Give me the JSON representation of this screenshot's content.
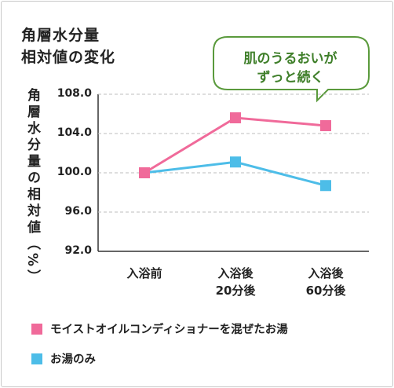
{
  "title_lines": [
    "角層水分量",
    "相対値の変化"
  ],
  "callout": {
    "lines": [
      "肌のうるおいが",
      "ずっと続く"
    ],
    "color": "#5a9a3c"
  },
  "chart_data": {
    "type": "line",
    "ylabel": "角層水分量の相対値（%）",
    "categories": [
      [
        "入浴前"
      ],
      [
        "入浴後",
        "20分後"
      ],
      [
        "入浴後",
        "60分後"
      ]
    ],
    "ylim": [
      92.0,
      108.0
    ],
    "yticks": [
      "108.0",
      "104.0",
      "100.0",
      "96.0",
      "92.0"
    ],
    "ytick_values": [
      108,
      104,
      100,
      96,
      92
    ],
    "grid": true,
    "series": [
      {
        "name": "モイストオイルコンディショナーを混ぜたお湯",
        "color": "#f06a9a",
        "values": [
          100.0,
          105.6,
          104.8
        ]
      },
      {
        "name": "お湯のみ",
        "color": "#4dbde8",
        "values": [
          100.0,
          101.1,
          98.7
        ]
      }
    ]
  }
}
